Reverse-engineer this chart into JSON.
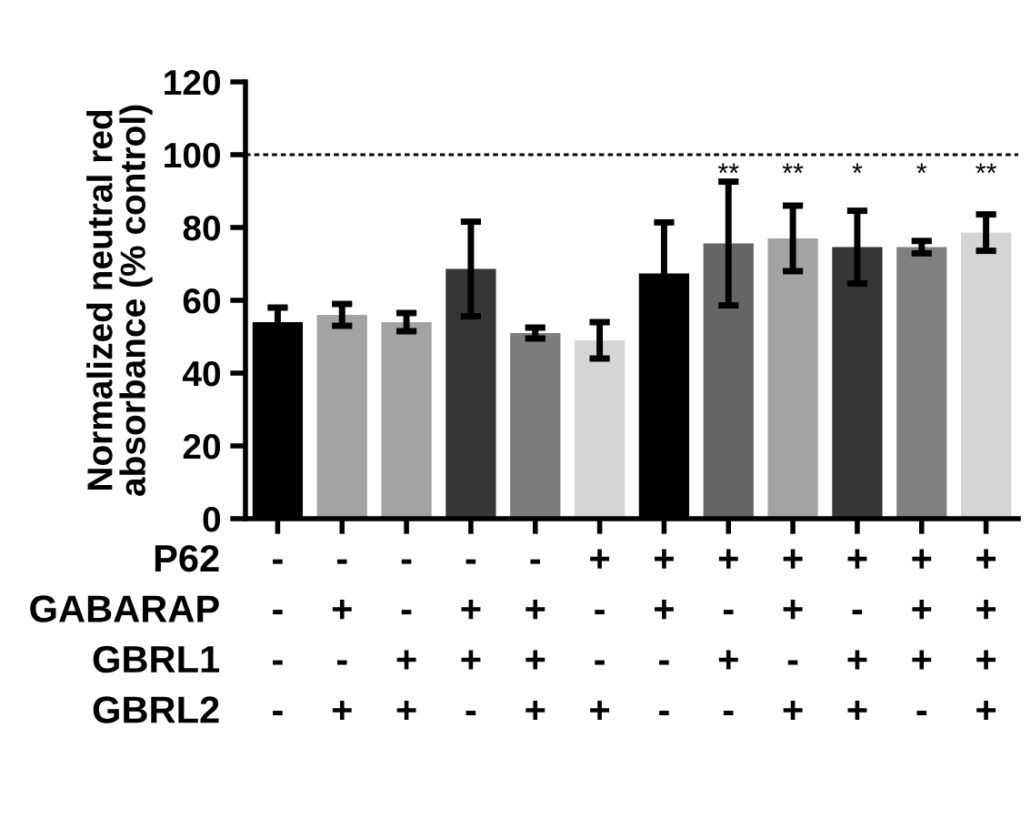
{
  "chart_data": {
    "type": "bar",
    "ylabel": "Normalized neutral red\nabsorbance (% control)",
    "categories": [
      "-\n-\n-\n-",
      "-\n+\n-\n+",
      "-\n-\n+\n+",
      "-\n+\n+\n-",
      "-\n+\n+\n+",
      "+\n-\n-\n+",
      "+\n+\n-\n-",
      "+\n-\n+\n-",
      "+\n+\n-\n+",
      "+\n-\n+\n+",
      "+\n+\n+\n-",
      "+\n+\n+\n+"
    ],
    "values": [
      54,
      56,
      54,
      68.6,
      51,
      49,
      67.4,
      75.6,
      77,
      74.6,
      74.6,
      78.6
    ],
    "errors": [
      4,
      3,
      2.5,
      13,
      1.5,
      5,
      14,
      17,
      9,
      10,
      1.7,
      5
    ],
    "colors": [
      "#000000",
      "#a3a3a5",
      "#a3a3a5",
      "#363636",
      "#7d7d7d",
      "#d5d5d5",
      "#000000",
      "#656565",
      "#a3a3a5",
      "#363636",
      "#808080",
      "#d5d5d5"
    ],
    "value_labels": [
      null,
      null,
      null,
      null,
      null,
      null,
      null,
      "**",
      "**",
      "*",
      "*",
      "**"
    ],
    "ref_lines": [
      {
        "axis": "y",
        "value": 100,
        "color": "#000000",
        "line_style": "dotted"
      }
    ],
    "annotations": [
      "P62",
      "GABARAP",
      "GBRL1",
      "GBRL2"
    ],
    "ylim": [
      0,
      120
    ],
    "yticks": [
      0,
      20,
      40,
      60,
      80,
      100,
      120
    ],
    "grid": false,
    "legend": false
  }
}
